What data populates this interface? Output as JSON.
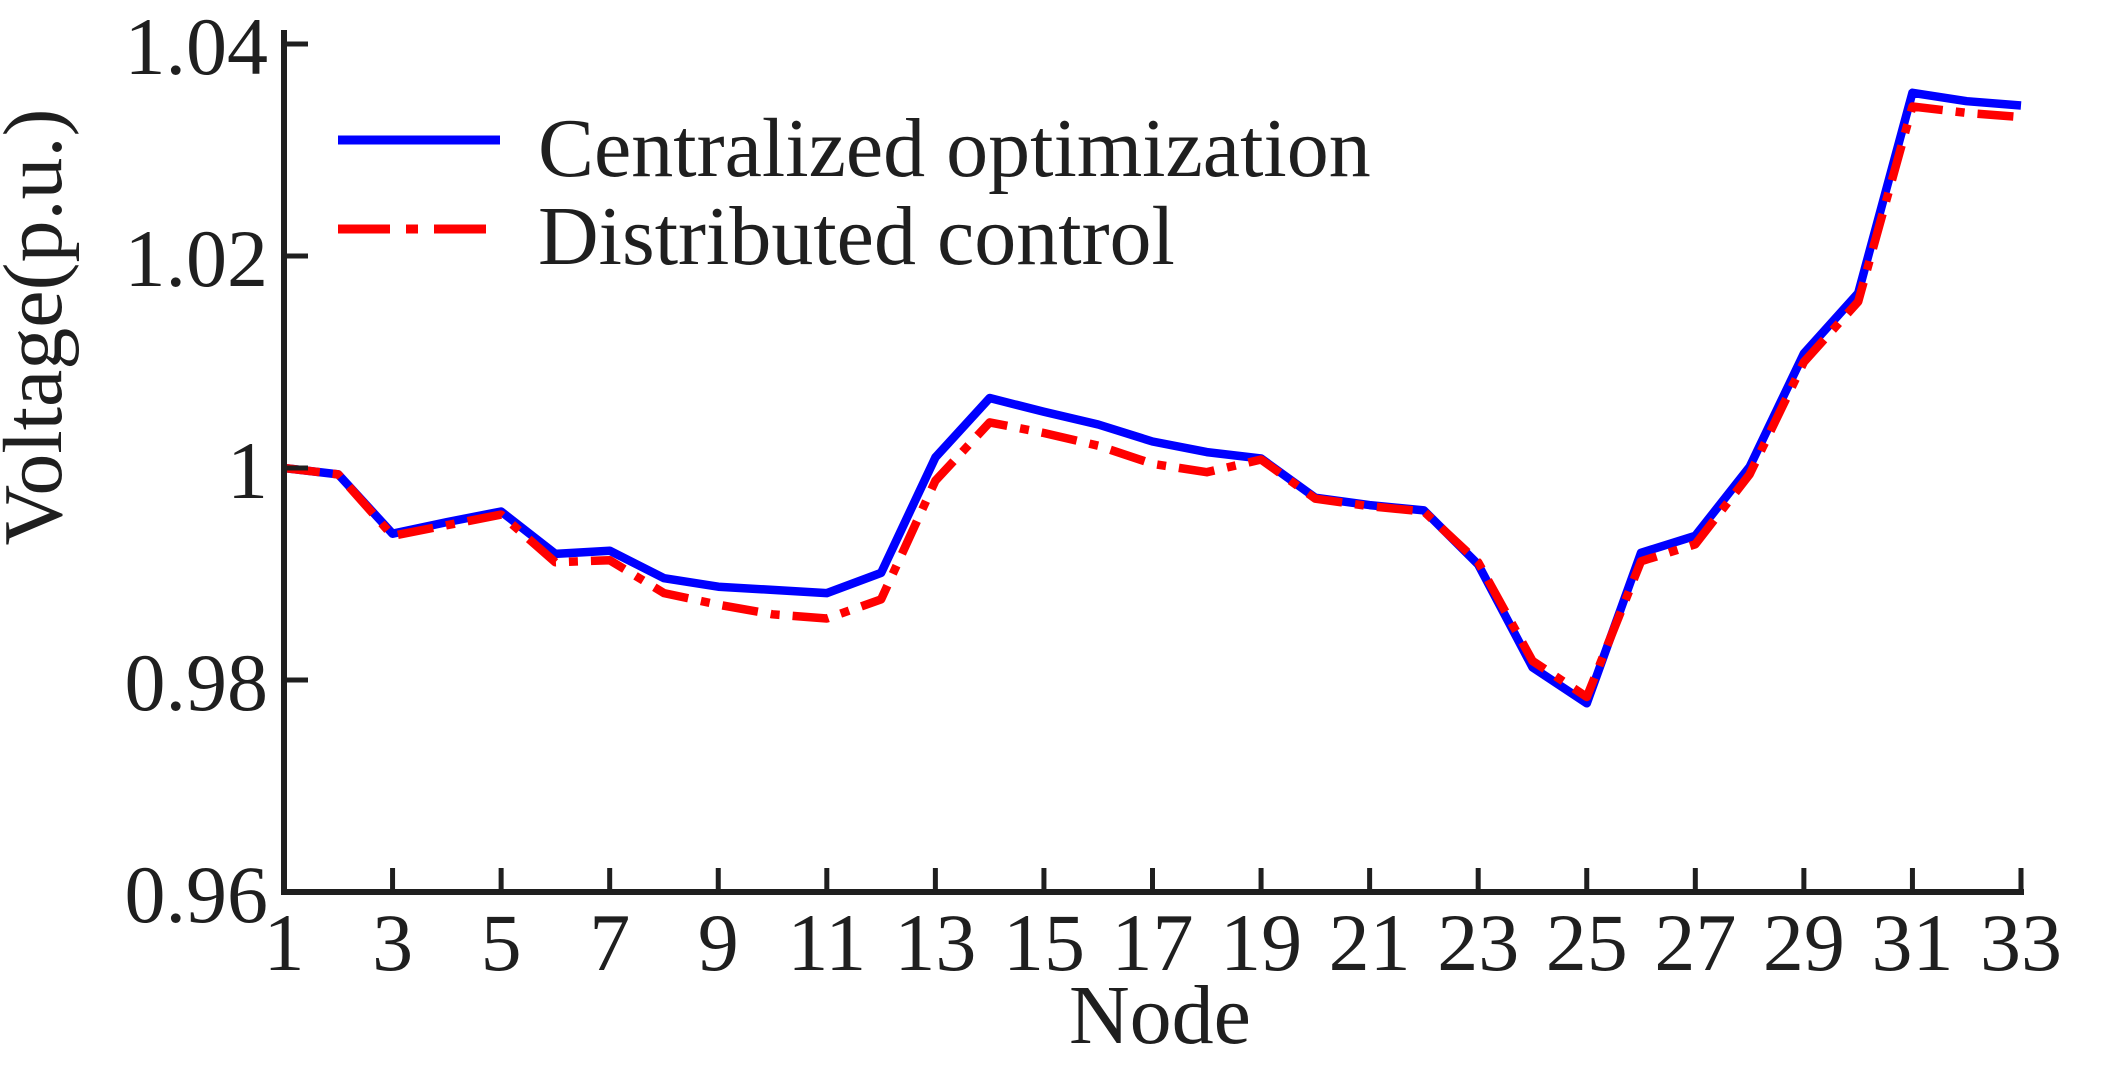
{
  "chart_data": {
    "type": "line",
    "title": "",
    "xlabel": "Node",
    "ylabel": "Voltage(p.u.)",
    "xlim": [
      1,
      33
    ],
    "ylim": [
      0.96,
      1.04
    ],
    "grid": false,
    "x_ticks": [
      1,
      3,
      5,
      7,
      9,
      11,
      13,
      15,
      17,
      19,
      21,
      23,
      25,
      27,
      29,
      31,
      33
    ],
    "x_tick_labels": [
      "1",
      "3",
      "5",
      "7",
      "9",
      "11",
      "13",
      "15",
      "17",
      "19",
      "21",
      "23",
      "25",
      "27",
      "29",
      "31",
      "33"
    ],
    "y_ticks": [
      0.96,
      0.98,
      1.0,
      1.02,
      1.04
    ],
    "y_tick_labels": [
      "0.96",
      "0.98",
      "1",
      "1.02",
      "1.04"
    ],
    "x": [
      1,
      2,
      3,
      4,
      5,
      6,
      7,
      8,
      9,
      10,
      11,
      12,
      13,
      14,
      15,
      16,
      17,
      18,
      19,
      20,
      21,
      22,
      23,
      24,
      25,
      26,
      27,
      28,
      29,
      30,
      31,
      32,
      33
    ],
    "series": [
      {
        "name": "Centralized optimization",
        "color": "#0000ff",
        "line_style": "solid",
        "values": [
          1.0,
          0.9994,
          0.9938,
          0.9949,
          0.9959,
          0.9919,
          0.9922,
          0.9896,
          0.9888,
          0.9885,
          0.9882,
          0.9901,
          1.001,
          1.0066,
          1.0053,
          1.0041,
          1.0025,
          1.0015,
          1.0009,
          0.9972,
          0.9965,
          0.996,
          0.9909,
          0.9812,
          0.9778,
          0.992,
          0.9936,
          1.0001,
          1.0108,
          1.0165,
          1.0354,
          1.0346,
          1.0342
        ]
      },
      {
        "name": "Distributed control",
        "color": "#ff0000",
        "line_style": "dash-dot",
        "values": [
          1.0,
          0.9994,
          0.9936,
          0.9946,
          0.9956,
          0.9911,
          0.9913,
          0.9882,
          0.9871,
          0.9862,
          0.9858,
          0.9876,
          0.9988,
          1.0043,
          1.0033,
          1.0021,
          1.0004,
          0.9996,
          1.0008,
          0.9971,
          0.9964,
          0.9959,
          0.9911,
          0.9818,
          0.9784,
          0.9912,
          0.9928,
          0.9994,
          1.01,
          1.0157,
          1.0341,
          1.0335,
          1.0331
        ]
      }
    ],
    "legend": {
      "position": "upper-left-inside",
      "box": false,
      "entries": [
        {
          "label": "Centralized optimization",
          "color": "#0000ff",
          "line_style": "solid"
        },
        {
          "label": "Distributed control",
          "color": "#ff0000",
          "line_style": "dash-dot"
        }
      ]
    },
    "axis_color": "#1f1f1f",
    "text_color": "#1f1f1f"
  }
}
